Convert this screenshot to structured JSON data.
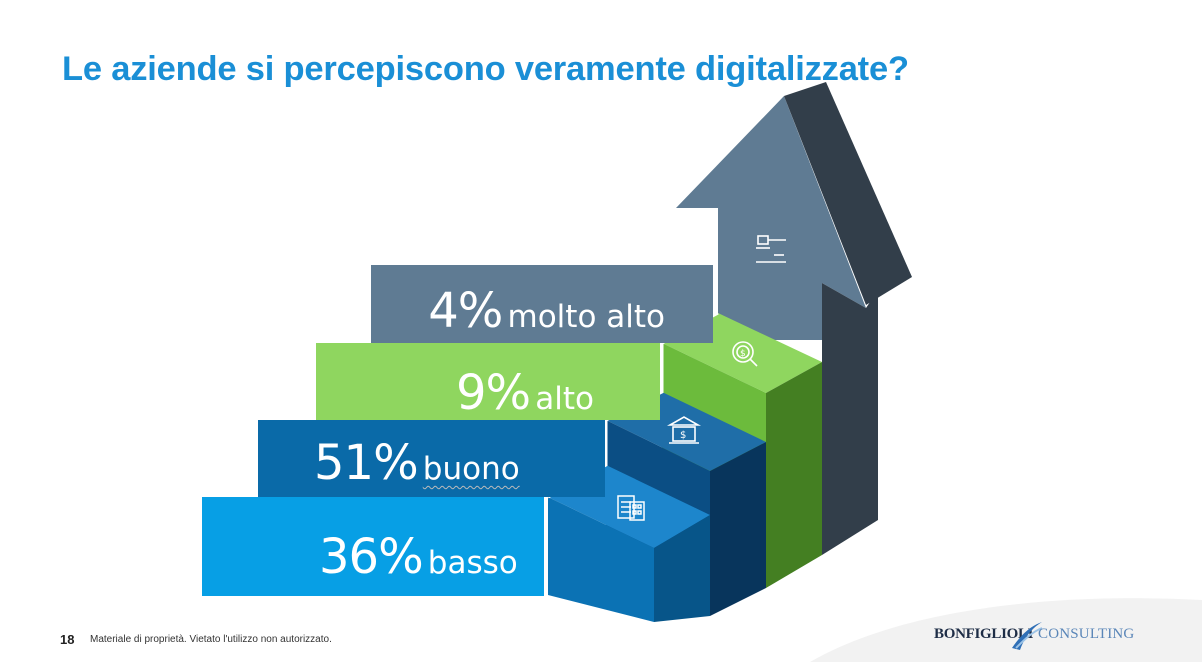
{
  "slide": {
    "title": "Le aziende si percepiscono veramente digitalizzate?",
    "page_number": "18",
    "footer_note": "Materiale di proprietà. Vietato l'utilizzo non autorizzato."
  },
  "levels": [
    {
      "percent": "4%",
      "label": "molto alto",
      "color": "#5f7b93"
    },
    {
      "percent": "9%",
      "label": "alto",
      "color": "#8fd65f"
    },
    {
      "percent": "51%",
      "label": "buono",
      "color": "#0a6aa8"
    },
    {
      "percent": "36%",
      "label": "basso",
      "color": "#079fe5"
    }
  ],
  "icons": [
    "gavel-icon",
    "dollar-search-icon",
    "bank-icon",
    "checklist-calculator-icon"
  ],
  "logo": {
    "brand": "BONFIGLIOLI",
    "sub": "CONSULTING"
  },
  "colors": {
    "title": "#1a8fd6",
    "brand_dark": "#1e2d46",
    "brand_light": "#5a86b8"
  }
}
